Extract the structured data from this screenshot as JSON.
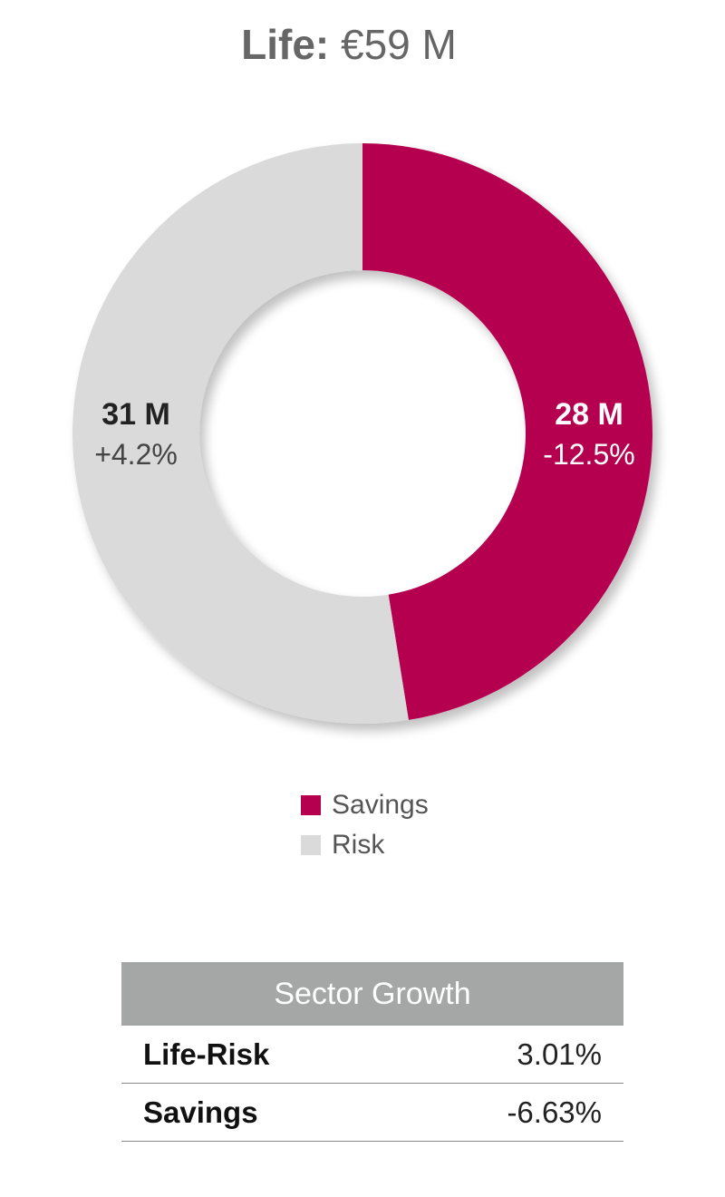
{
  "title": {
    "bold": "Life:",
    "light": "€59 M"
  },
  "colors": {
    "savings": "#b5004f",
    "risk": "#dadada",
    "header_bg": "#a5a7a6"
  },
  "chart_data": {
    "type": "pie",
    "title": "Life: €59 M",
    "slices": [
      {
        "name": "Savings",
        "value": 28,
        "value_label": "28 M",
        "change_label": "-12.5%",
        "color": "#b5004f"
      },
      {
        "name": "Risk",
        "value": 31,
        "value_label": "31 M",
        "change_label": "+4.2%",
        "color": "#dadada"
      }
    ],
    "legend": [
      "Savings",
      "Risk"
    ],
    "legend_position": "bottom"
  },
  "legend": {
    "items": [
      {
        "label": "Savings"
      },
      {
        "label": "Risk"
      }
    ]
  },
  "table": {
    "header": "Sector Growth",
    "rows": [
      {
        "label": "Life-Risk",
        "value": "3.01%"
      },
      {
        "label": "Savings",
        "value": "-6.63%"
      }
    ]
  }
}
